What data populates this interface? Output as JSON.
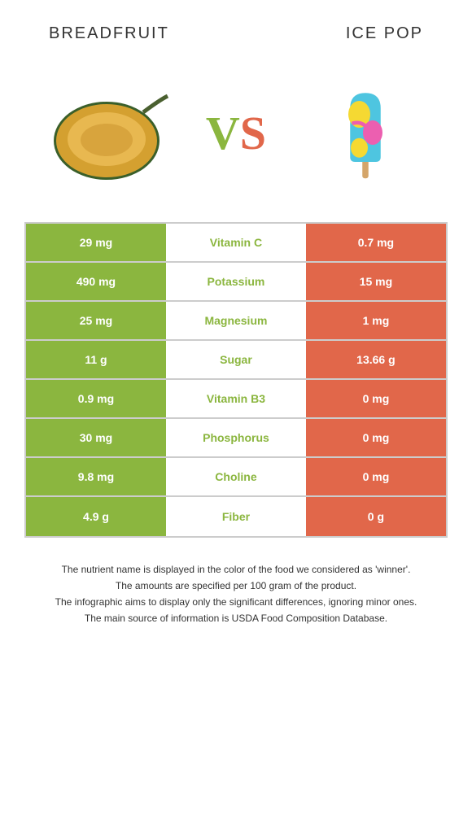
{
  "left": {
    "title": "BREADFRUIT",
    "color": "#8bb63f"
  },
  "right": {
    "title": "ICE POP",
    "color": "#e1674a"
  },
  "vs": {
    "text": "VS",
    "v_color": "#8bb63f",
    "s_color": "#e1674a"
  },
  "rows": [
    {
      "left": "29 mg",
      "mid": "Vitamin C",
      "right": "0.7 mg",
      "winner": "left"
    },
    {
      "left": "490 mg",
      "mid": "Potassium",
      "right": "15 mg",
      "winner": "left"
    },
    {
      "left": "25 mg",
      "mid": "Magnesium",
      "right": "1 mg",
      "winner": "left"
    },
    {
      "left": "11 g",
      "mid": "Sugar",
      "right": "13.66 g",
      "winner": "left"
    },
    {
      "left": "0.9 mg",
      "mid": "Vitamin B3",
      "right": "0 mg",
      "winner": "left"
    },
    {
      "left": "30 mg",
      "mid": "Phosphorus",
      "right": "0 mg",
      "winner": "left"
    },
    {
      "left": "9.8 mg",
      "mid": "Choline",
      "right": "0 mg",
      "winner": "left"
    },
    {
      "left": "4.9 g",
      "mid": "Fiber",
      "right": "0 g",
      "winner": "left"
    }
  ],
  "footer": [
    "The nutrient name is displayed in the color of the food we considered as 'winner'.",
    "The amounts are specified per 100 gram of the product.",
    "The infographic aims to display only the significant differences, ignoring minor ones.",
    "The main source of information is USDA Food Composition Database."
  ]
}
